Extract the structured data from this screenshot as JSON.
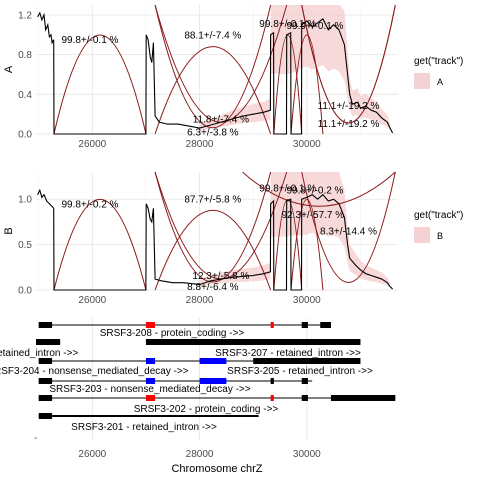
{
  "chart_data": [
    {
      "type": "line",
      "panel_label": "A",
      "xlim": [
        24950,
        31700
      ],
      "ylim": [
        0,
        1.3
      ],
      "x_ticks": [
        26000,
        28000,
        30000
      ],
      "y_ticks": [
        {
          "value": 0.0,
          "label": "0.0"
        },
        {
          "value": 0.4,
          "label": "0.4"
        },
        {
          "value": 0.8,
          "label": "0.8"
        },
        {
          "value": 1.2,
          "label": "1.2"
        }
      ],
      "grid": true,
      "legend": {
        "title": "get(\"track\")",
        "entries": [
          "A"
        ],
        "placement": "right"
      },
      "coverage_color": "#000000",
      "arc_color": "#8b1a1a",
      "ribbon_color": "#f4cccc",
      "coverage": [
        [
          24980,
          1.18
        ],
        [
          25020,
          1.22
        ],
        [
          25060,
          1.15
        ],
        [
          25100,
          1.2
        ],
        [
          25130,
          1.05
        ],
        [
          25170,
          1.1
        ],
        [
          25200,
          0.98
        ],
        [
          25230,
          1.0
        ],
        [
          25250,
          0.92
        ],
        [
          25280,
          0.95
        ],
        [
          25285,
          0
        ],
        [
          27000,
          0
        ],
        [
          27005,
          1.0
        ],
        [
          27040,
          0.95
        ],
        [
          27080,
          0.78
        ],
        [
          27110,
          0.72
        ],
        [
          27140,
          0.92
        ],
        [
          27170,
          0.18
        ],
        [
          27250,
          0.12
        ],
        [
          27400,
          0.1
        ],
        [
          27600,
          0.1
        ],
        [
          27800,
          0.08
        ],
        [
          28000,
          0.06
        ],
        [
          28200,
          0.09
        ],
        [
          28400,
          0.12
        ],
        [
          28600,
          0.15
        ],
        [
          28800,
          0.18
        ],
        [
          29000,
          0.2
        ],
        [
          29200,
          0.22
        ],
        [
          29320,
          0.24
        ],
        [
          29325,
          1.0
        ],
        [
          29380,
          1.02
        ],
        [
          29385,
          0
        ],
        [
          29620,
          0
        ],
        [
          29625,
          1.0
        ],
        [
          29700,
          1.02
        ],
        [
          29705,
          0
        ],
        [
          29900,
          0
        ],
        [
          29905,
          1.1
        ],
        [
          30000,
          1.14
        ],
        [
          30100,
          1.08
        ],
        [
          30200,
          1.12
        ],
        [
          30300,
          1.16
        ],
        [
          30400,
          1.05
        ],
        [
          30500,
          1.1
        ],
        [
          30600,
          1.05
        ],
        [
          30700,
          0.9
        ],
        [
          30760,
          0.6
        ],
        [
          30800,
          0.4
        ],
        [
          30850,
          0.3
        ],
        [
          30950,
          0.32
        ],
        [
          31000,
          0.26
        ],
        [
          31100,
          0.28
        ],
        [
          31200,
          0.24
        ],
        [
          31300,
          0.22
        ],
        [
          31400,
          0.16
        ],
        [
          31500,
          0.12
        ],
        [
          31550,
          0.06
        ],
        [
          31600,
          0.01
        ]
      ],
      "junctions": [
        {
          "start": 25285,
          "end": 27000,
          "label": "99.8+/-0.1 %",
          "value": 0.998,
          "above": true
        },
        {
          "start": 27170,
          "end": 29325,
          "label": "88.1+/-7.4 %",
          "value": 0.881,
          "above": true
        },
        {
          "start": 27170,
          "end": 29325,
          "label": "6.3+/-3.8 %",
          "value": 0.063,
          "above": false
        },
        {
          "start": 27170,
          "end": 29625,
          "label": "11.8+/-7.4 %",
          "value": 0.118,
          "above": false
        },
        {
          "start": 29385,
          "end": 29905,
          "label": "99.8+/-0.1 %",
          "value": 0.998,
          "above": true
        },
        {
          "start": 29705,
          "end": 30300,
          "label": "99.9+/-0.1 %",
          "value": 0.999,
          "above": true
        },
        {
          "start": 29905,
          "end": 31650,
          "label": "11.1+/-19.2 %",
          "value": 0.111,
          "above": false
        },
        {
          "start": 29905,
          "end": 31650,
          "label": "11.1+/-19.2 %",
          "value": 0.111,
          "above": false
        }
      ]
    },
    {
      "type": "line",
      "panel_label": "B",
      "xlim": [
        24950,
        31700
      ],
      "ylim": [
        0,
        1.3
      ],
      "x_ticks": [
        26000,
        28000,
        30000
      ],
      "y_ticks": [
        {
          "value": 0.0,
          "label": "0.0"
        },
        {
          "value": 0.5,
          "label": "0.5"
        },
        {
          "value": 1.0,
          "label": "1.0"
        }
      ],
      "grid": true,
      "legend": {
        "title": "get(\"track\")",
        "entries": [
          "B"
        ],
        "placement": "right"
      },
      "coverage_color": "#000000",
      "arc_color": "#8b1a1a",
      "ribbon_color": "#f4cccc",
      "coverage": [
        [
          24980,
          1.05
        ],
        [
          25020,
          1.1
        ],
        [
          25060,
          1.02
        ],
        [
          25100,
          1.05
        ],
        [
          25150,
          0.98
        ],
        [
          25200,
          0.95
        ],
        [
          25250,
          0.92
        ],
        [
          25280,
          0.9
        ],
        [
          25285,
          0
        ],
        [
          27000,
          0
        ],
        [
          27005,
          0.95
        ],
        [
          27040,
          0.9
        ],
        [
          27080,
          0.78
        ],
        [
          27110,
          0.75
        ],
        [
          27140,
          0.9
        ],
        [
          27170,
          0.12
        ],
        [
          27300,
          0.1
        ],
        [
          27500,
          0.08
        ],
        [
          27700,
          0.08
        ],
        [
          28000,
          0.06
        ],
        [
          28200,
          0.1
        ],
        [
          28400,
          0.12
        ],
        [
          28600,
          0.14
        ],
        [
          28800,
          0.15
        ],
        [
          29000,
          0.16
        ],
        [
          29200,
          0.18
        ],
        [
          29320,
          0.2
        ],
        [
          29325,
          0.95
        ],
        [
          29380,
          0.98
        ],
        [
          29385,
          0
        ],
        [
          29620,
          0
        ],
        [
          29625,
          0.98
        ],
        [
          29700,
          1.0
        ],
        [
          29705,
          0
        ],
        [
          29900,
          0
        ],
        [
          29905,
          1.0
        ],
        [
          30000,
          1.02
        ],
        [
          30100,
          1.05
        ],
        [
          30200,
          1.0
        ],
        [
          30300,
          1.05
        ],
        [
          30400,
          0.98
        ],
        [
          30500,
          1.0
        ],
        [
          30600,
          0.95
        ],
        [
          30700,
          0.8
        ],
        [
          30760,
          0.5
        ],
        [
          30800,
          0.35
        ],
        [
          30900,
          0.28
        ],
        [
          31000,
          0.22
        ],
        [
          31100,
          0.18
        ],
        [
          31200,
          0.16
        ],
        [
          31300,
          0.14
        ],
        [
          31400,
          0.12
        ],
        [
          31500,
          0.08
        ],
        [
          31550,
          0.04
        ],
        [
          31600,
          0.01
        ]
      ],
      "junctions": [
        {
          "start": 25285,
          "end": 27000,
          "label": "99.8+/-0.2 %",
          "value": 0.998,
          "above": true
        },
        {
          "start": 27170,
          "end": 29325,
          "label": "87.7+/-5.8 %",
          "value": 0.877,
          "above": true
        },
        {
          "start": 27170,
          "end": 29325,
          "label": "8.8+/-6.4 %",
          "value": 0.088,
          "above": false
        },
        {
          "start": 27170,
          "end": 29625,
          "label": "12.3+/-5.8 %",
          "value": 0.123,
          "above": false
        },
        {
          "start": 29385,
          "end": 29905,
          "label": "99.8+/-0.1 %",
          "value": 0.998,
          "above": true
        },
        {
          "start": 29705,
          "end": 30300,
          "label": "99.8+/-0.2 %",
          "value": 0.998,
          "above": true
        },
        {
          "start": 29905,
          "end": 31650,
          "label": "8.3+/-14.4 %",
          "value": 0.083,
          "above": false
        },
        {
          "start": 28800,
          "end": 31650,
          "label": "92.3+/-57.7 %",
          "value": 0.923,
          "above": false
        }
      ]
    },
    {
      "type": "gene-track",
      "xlim": [
        24950,
        31700
      ],
      "x_ticks": [
        26000,
        28000,
        30000
      ],
      "xlabel": "Chromosome chrZ",
      "transcripts": [
        {
          "label": "SRSF3-208 - protein_coding ->>",
          "segments": [
            [
              25000,
              25250,
              "black"
            ],
            [
              27000,
              27170,
              "red"
            ],
            [
              29325,
              29385,
              "red"
            ],
            [
              29905,
              30020,
              "black"
            ],
            [
              30250,
              30450,
              "black"
            ]
          ],
          "line": [
            25000,
            30450
          ]
        },
        {
          "label": "SRSF3-207 - retained_intron ->>",
          "segments": [
            [
              27000,
              31000,
              "black"
            ]
          ],
          "line": [
            27000,
            31000
          ]
        },
        {
          "label": "retained_intron ->>",
          "segments": [
            [
              24950,
              25400,
              "black"
            ]
          ],
          "line": [
            24950,
            25400
          ]
        },
        {
          "label": "SRSF3-204 - nonsense_mediated_decay ->>",
          "segments": [
            [
              25000,
              25250,
              "black"
            ],
            [
              27000,
              27170,
              "blue"
            ],
            [
              28000,
              28500,
              "blue"
            ],
            [
              29325,
              29385,
              "black"
            ]
          ],
          "line": [
            25000,
            29385
          ]
        },
        {
          "label": "SRSF3-205 - retained_intron ->>",
          "segments": [
            [
              29000,
              31000,
              "black"
            ]
          ],
          "line": [
            29000,
            31000
          ]
        },
        {
          "label": "SRSF3-203 - nonsense_mediated_decay ->>",
          "segments": [
            [
              25000,
              25250,
              "black"
            ],
            [
              27000,
              27170,
              "blue"
            ],
            [
              28000,
              28500,
              "blue"
            ],
            [
              29325,
              29385,
              "black"
            ],
            [
              29905,
              30020,
              "black"
            ]
          ],
          "line": [
            25000,
            30100
          ]
        },
        {
          "label": "SRSF3-202 - protein_coding ->>",
          "segments": [
            [
              25000,
              25250,
              "black"
            ],
            [
              27000,
              27170,
              "red"
            ],
            [
              29325,
              29385,
              "red"
            ],
            [
              29905,
              30020,
              "black"
            ],
            [
              30450,
              31650,
              "black"
            ]
          ],
          "line": [
            25000,
            31650
          ]
        },
        {
          "label": "SRSF3-201 - retained_intron ->>",
          "segments": [
            [
              25000,
              25250,
              "black"
            ],
            [
              25250,
              29100,
              "thin"
            ]
          ],
          "line": [
            25000,
            29100
          ]
        }
      ],
      "stray_mark": "-"
    }
  ]
}
